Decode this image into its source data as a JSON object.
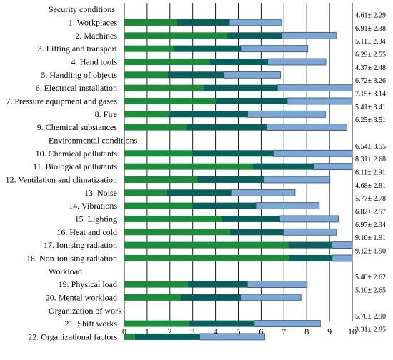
{
  "chart_data": {
    "type": "bar",
    "orientation": "horizontal",
    "stacked": true,
    "xlim": [
      0,
      10
    ],
    "x_ticks": [
      "0",
      "1",
      "2",
      "3",
      "4",
      "5",
      "6",
      "7",
      "8",
      "9",
      "10"
    ],
    "grid": "vertical",
    "legend": "none",
    "colors": {
      "mean_minus_sd": "#1a8c3c",
      "mean": "#0b5f5b",
      "mean_plus_sd": "#7ea6d3"
    },
    "rows": [
      {
        "kind": "header",
        "label": "Security conditions"
      },
      {
        "kind": "bar",
        "label": "1. Workplaces",
        "mean": 4.61,
        "sd": 2.29,
        "annotation": "4.61± 2.29"
      },
      {
        "kind": "bar",
        "label": "2. Machines",
        "mean": 6.91,
        "sd": 2.38,
        "annotation": "6.91± 2.38"
      },
      {
        "kind": "bar",
        "label": "3. Lifting and transport",
        "mean": 5.11,
        "sd": 2.94,
        "annotation": "5.11± 2.94"
      },
      {
        "kind": "bar",
        "label": "4. Hand tools",
        "mean": 6.29,
        "sd": 2.55,
        "annotation": "6.29± 2.55"
      },
      {
        "kind": "bar",
        "label": "5. Handling of objects",
        "mean": 4.37,
        "sd": 2.48,
        "annotation": "4.37± 2.48"
      },
      {
        "kind": "bar",
        "label": "6. Electrical installation",
        "mean": 6.72,
        "sd": 3.26,
        "annotation": "6.72± 3.26"
      },
      {
        "kind": "bar",
        "label": "7. Pressure equipment and gases",
        "mean": 7.15,
        "sd": 3.14,
        "annotation": "7.15± 3.14"
      },
      {
        "kind": "bar",
        "label": "8. Fire",
        "mean": 5.41,
        "sd": 3.41,
        "annotation": "5.41± 3.41"
      },
      {
        "kind": "bar",
        "label": "9. Chemical substances",
        "mean": 6.25,
        "sd": 3.51,
        "annotation": "6.25± 3.51"
      },
      {
        "kind": "header",
        "label": "Environmental conditions"
      },
      {
        "kind": "bar",
        "label": "10. Chemical pollutants",
        "mean": 6.54,
        "sd": 3.55,
        "annotation": "6.54± 3.55"
      },
      {
        "kind": "bar",
        "label": "11. Biological pollutants",
        "mean": 8.31,
        "sd": 2.68,
        "annotation": "8.31± 2.68"
      },
      {
        "kind": "bar",
        "label": "12. Ventilation and climatization",
        "mean": 6.11,
        "sd": 2.91,
        "annotation": "6.11± 2.91"
      },
      {
        "kind": "bar",
        "label": "13. Noise",
        "mean": 4.68,
        "sd": 2.81,
        "annotation": "4.68± 2.81"
      },
      {
        "kind": "bar",
        "label": "14. Vibrations",
        "mean": 5.77,
        "sd": 2.78,
        "annotation": "5.77± 2.78"
      },
      {
        "kind": "bar",
        "label": "15. Lighting",
        "mean": 6.82,
        "sd": 2.57,
        "annotation": "6.82± 2.57"
      },
      {
        "kind": "bar",
        "label": "16. Heat and cold",
        "mean": 6.97,
        "sd": 2.34,
        "annotation": "6.97± 2.34"
      },
      {
        "kind": "bar",
        "label": "17. Ionising radiation",
        "mean": 9.1,
        "sd": 1.91,
        "annotation": "9.10± 1.91"
      },
      {
        "kind": "bar",
        "label": "18. Non-ionising radiation",
        "mean": 9.12,
        "sd": 1.9,
        "annotation": "9.12± 1.90"
      },
      {
        "kind": "header",
        "label": "Workload"
      },
      {
        "kind": "bar",
        "label": "19. Physical load",
        "mean": 5.4,
        "sd": 2.62,
        "annotation": "5.40± 2.62"
      },
      {
        "kind": "bar",
        "label": "20. Mental workload",
        "mean": 5.1,
        "sd": 2.65,
        "annotation": "5.10± 2.65"
      },
      {
        "kind": "header",
        "label": "Organization of work"
      },
      {
        "kind": "bar",
        "label": "21. Shift works",
        "mean": 5.7,
        "sd": 2.9,
        "annotation": "5.70± 2.90"
      },
      {
        "kind": "bar",
        "label": "22. Organizational factors",
        "mean": 3.31,
        "sd": 2.85,
        "annotation": "3.31± 2.85"
      }
    ]
  }
}
